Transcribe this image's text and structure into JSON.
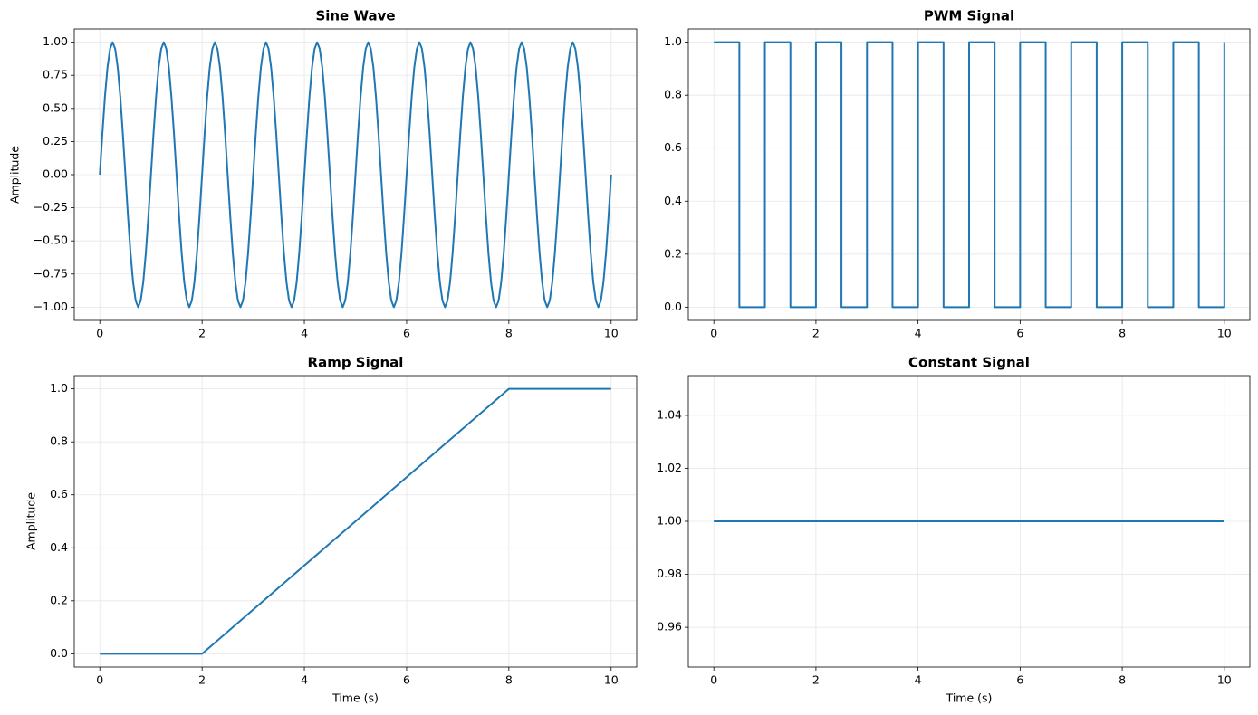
{
  "chart_data": [
    {
      "type": "line",
      "title": "Sine Wave",
      "ylabel": "Amplitude",
      "color": "#1f77b4",
      "grid": true,
      "x": [
        0,
        0.05,
        0.1,
        0.15,
        0.2,
        0.25,
        0.3,
        0.35,
        0.4,
        0.45,
        0.5,
        0.55,
        0.6,
        0.65,
        0.7,
        0.75,
        0.8,
        0.85,
        0.9,
        0.95,
        1,
        1.05,
        1.1,
        1.15,
        1.2,
        1.25,
        1.3,
        1.35,
        1.4,
        1.45,
        1.5,
        1.55,
        1.6,
        1.65,
        1.7,
        1.75,
        1.8,
        1.85,
        1.9,
        1.95,
        2,
        2.05,
        2.1,
        2.15,
        2.2,
        2.25,
        2.3,
        2.35,
        2.4,
        2.45,
        2.5,
        2.55,
        2.6,
        2.65,
        2.7,
        2.75,
        2.8,
        2.85,
        2.9,
        2.95,
        3,
        3.05,
        3.1,
        3.15,
        3.2,
        3.25,
        3.3,
        3.35,
        3.4,
        3.45,
        3.5,
        3.55,
        3.6,
        3.65,
        3.7,
        3.75,
        3.8,
        3.85,
        3.9,
        3.95,
        4,
        4.05,
        4.1,
        4.15,
        4.2,
        4.25,
        4.3,
        4.35,
        4.4,
        4.45,
        4.5,
        4.55,
        4.6,
        4.65,
        4.7,
        4.75,
        4.8,
        4.85,
        4.9,
        4.95,
        5,
        5.05,
        5.1,
        5.15,
        5.2,
        5.25,
        5.3,
        5.35,
        5.4,
        5.45,
        5.5,
        5.55,
        5.6,
        5.65,
        5.7,
        5.75,
        5.8,
        5.85,
        5.9,
        5.95,
        6,
        6.05,
        6.1,
        6.15,
        6.2,
        6.25,
        6.3,
        6.35,
        6.4,
        6.45,
        6.5,
        6.55,
        6.6,
        6.65,
        6.7,
        6.75,
        6.8,
        6.85,
        6.9,
        6.95,
        7,
        7.05,
        7.1,
        7.15,
        7.2,
        7.25,
        7.3,
        7.35,
        7.4,
        7.45,
        7.5,
        7.55,
        7.6,
        7.65,
        7.7,
        7.75,
        7.8,
        7.85,
        7.9,
        7.95,
        8,
        8.05,
        8.1,
        8.15,
        8.2,
        8.25,
        8.3,
        8.35,
        8.4,
        8.45,
        8.5,
        8.55,
        8.6,
        8.65,
        8.7,
        8.75,
        8.8,
        8.85,
        8.9,
        8.95,
        9,
        9.05,
        9.1,
        9.15,
        9.2,
        9.25,
        9.3,
        9.35,
        9.4,
        9.45,
        9.5,
        9.55,
        9.6,
        9.65,
        9.7,
        9.75,
        9.8,
        9.85,
        9.9,
        9.95,
        10
      ],
      "values": [
        0,
        0.31,
        0.59,
        0.81,
        0.95,
        1,
        0.95,
        0.81,
        0.59,
        0.31,
        0,
        -0.31,
        -0.59,
        -0.81,
        -0.95,
        -1,
        -0.95,
        -0.81,
        -0.59,
        -0.31,
        0,
        0.31,
        0.59,
        0.81,
        0.95,
        1,
        0.95,
        0.81,
        0.59,
        0.31,
        0,
        -0.31,
        -0.59,
        -0.81,
        -0.95,
        -1,
        -0.95,
        -0.81,
        -0.59,
        -0.31,
        0,
        0.31,
        0.59,
        0.81,
        0.95,
        1,
        0.95,
        0.81,
        0.59,
        0.31,
        0,
        -0.31,
        -0.59,
        -0.81,
        -0.95,
        -1,
        -0.95,
        -0.81,
        -0.59,
        -0.31,
        0,
        0.31,
        0.59,
        0.81,
        0.95,
        1,
        0.95,
        0.81,
        0.59,
        0.31,
        0,
        -0.31,
        -0.59,
        -0.81,
        -0.95,
        -1,
        -0.95,
        -0.81,
        -0.59,
        -0.31,
        0,
        0.31,
        0.59,
        0.81,
        0.95,
        1,
        0.95,
        0.81,
        0.59,
        0.31,
        0,
        -0.31,
        -0.59,
        -0.81,
        -0.95,
        -1,
        -0.95,
        -0.81,
        -0.59,
        -0.31,
        0,
        0.31,
        0.59,
        0.81,
        0.95,
        1,
        0.95,
        0.81,
        0.59,
        0.31,
        0,
        -0.31,
        -0.59,
        -0.81,
        -0.95,
        -1,
        -0.95,
        -0.81,
        -0.59,
        -0.31,
        0,
        0.31,
        0.59,
        0.81,
        0.95,
        1,
        0.95,
        0.81,
        0.59,
        0.31,
        0,
        -0.31,
        -0.59,
        -0.81,
        -0.95,
        -1,
        -0.95,
        -0.81,
        -0.59,
        -0.31,
        0,
        0.31,
        0.59,
        0.81,
        0.95,
        1,
        0.95,
        0.81,
        0.59,
        0.31,
        0,
        -0.31,
        -0.59,
        -0.81,
        -0.95,
        -1,
        -0.95,
        -0.81,
        -0.59,
        -0.31,
        0,
        0.31,
        0.59,
        0.81,
        0.95,
        1,
        0.95,
        0.81,
        0.59,
        0.31,
        0,
        -0.31,
        -0.59,
        -0.81,
        -0.95,
        -1,
        -0.95,
        -0.81,
        -0.59,
        -0.31,
        0,
        0.31,
        0.59,
        0.81,
        0.95,
        1,
        0.95,
        0.81,
        0.59,
        0.31,
        0,
        -0.31,
        -0.59,
        -0.81,
        -0.95,
        -1,
        -0.95,
        -0.81,
        -0.59,
        -0.31,
        0
      ],
      "xlim": [
        -0.5,
        10.5
      ],
      "xticks": [
        0,
        2,
        4,
        6,
        8,
        10
      ],
      "ylim": [
        -1.1,
        1.1
      ],
      "yticks": [
        {
          "value": -1,
          "label": "−1.00"
        },
        {
          "value": -0.75,
          "label": "−0.75"
        },
        {
          "value": -0.5,
          "label": "−0.50"
        },
        {
          "value": -0.25,
          "label": "−0.25"
        },
        {
          "value": 0,
          "label": "0.00"
        },
        {
          "value": 0.25,
          "label": "0.25"
        },
        {
          "value": 0.5,
          "label": "0.50"
        },
        {
          "value": 0.75,
          "label": "0.75"
        },
        {
          "value": 1,
          "label": "1.00"
        }
      ]
    },
    {
      "type": "line",
      "title": "PWM Signal",
      "color": "#1f77b4",
      "grid": true,
      "x": [
        0,
        0.5,
        0.5,
        1,
        1,
        1.5,
        1.5,
        2,
        2,
        2.5,
        2.5,
        3,
        3,
        3.5,
        3.5,
        4,
        4,
        4.5,
        4.5,
        5,
        5,
        5.5,
        5.5,
        6,
        6,
        6.5,
        6.5,
        7,
        7,
        7.5,
        7.5,
        8,
        8,
        8.5,
        8.5,
        9,
        9,
        9.5,
        9.5,
        10,
        10
      ],
      "values": [
        1,
        1,
        0,
        0,
        1,
        1,
        0,
        0,
        1,
        1,
        0,
        0,
        1,
        1,
        0,
        0,
        1,
        1,
        0,
        0,
        1,
        1,
        0,
        0,
        1,
        1,
        0,
        0,
        1,
        1,
        0,
        0,
        1,
        1,
        0,
        0,
        1,
        1,
        0,
        0,
        1
      ],
      "xlim": [
        -0.5,
        10.5
      ],
      "xticks": [
        0,
        2,
        4,
        6,
        8,
        10
      ],
      "ylim": [
        -0.05,
        1.05
      ],
      "yticks": [
        {
          "value": 0,
          "label": "0.0"
        },
        {
          "value": 0.2,
          "label": "0.2"
        },
        {
          "value": 0.4,
          "label": "0.4"
        },
        {
          "value": 0.6,
          "label": "0.6"
        },
        {
          "value": 0.8,
          "label": "0.8"
        },
        {
          "value": 1,
          "label": "1.0"
        }
      ]
    },
    {
      "type": "line",
      "title": "Ramp Signal",
      "xlabel": "Time (s)",
      "ylabel": "Amplitude",
      "color": "#1f77b4",
      "grid": true,
      "x": [
        0,
        2,
        8,
        10
      ],
      "values": [
        0,
        0,
        1,
        1
      ],
      "xlim": [
        -0.5,
        10.5
      ],
      "xticks": [
        0,
        2,
        4,
        6,
        8,
        10
      ],
      "ylim": [
        -0.05,
        1.05
      ],
      "yticks": [
        {
          "value": 0,
          "label": "0.0"
        },
        {
          "value": 0.2,
          "label": "0.2"
        },
        {
          "value": 0.4,
          "label": "0.4"
        },
        {
          "value": 0.6,
          "label": "0.6"
        },
        {
          "value": 0.8,
          "label": "0.8"
        },
        {
          "value": 1,
          "label": "1.0"
        }
      ]
    },
    {
      "type": "line",
      "title": "Constant Signal",
      "xlabel": "Time (s)",
      "color": "#1f77b4",
      "grid": true,
      "x": [
        0,
        10
      ],
      "values": [
        1,
        1
      ],
      "xlim": [
        -0.5,
        10.5
      ],
      "xticks": [
        0,
        2,
        4,
        6,
        8,
        10
      ],
      "ylim": [
        0.945,
        1.055
      ],
      "yticks": [
        0.96,
        0.98,
        {
          "value": 1,
          "label": "1.00"
        },
        1.02,
        1.04
      ]
    }
  ]
}
